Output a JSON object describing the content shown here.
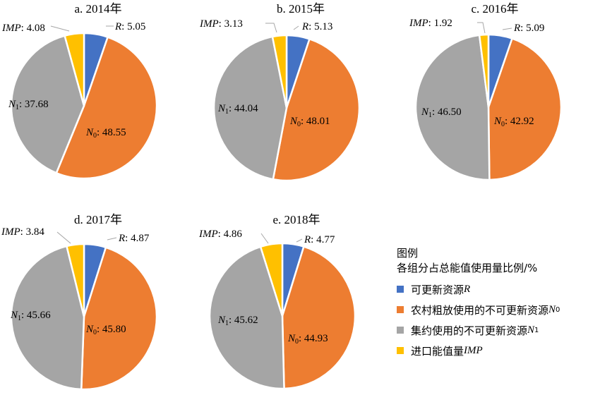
{
  "colors": {
    "R": "#4472c4",
    "N0": "#ed7d31",
    "N1": "#a5a5a5",
    "IMP": "#ffc000"
  },
  "legend": {
    "title": "图例",
    "subtitle": "各组分占总能值使用量比例/%",
    "items": [
      {
        "key": "R",
        "text": "可更新资源",
        "symbol": "R",
        "sub": ""
      },
      {
        "key": "N0",
        "text": "农村粗放使用的不可更新资源",
        "symbol": "N",
        "sub": "0"
      },
      {
        "key": "N1",
        "text": "集约使用的不可更新资源",
        "symbol": "N",
        "sub": "1"
      },
      {
        "key": "IMP",
        "text": "进口能值量",
        "symbol": "IMP",
        "sub": ""
      }
    ]
  },
  "chart_data": [
    {
      "type": "pie",
      "title": "a. 2014年",
      "slices": [
        {
          "key": "R",
          "label": "R",
          "value": 5.05
        },
        {
          "key": "N0",
          "label": "N0",
          "value": 48.55
        },
        {
          "key": "N1",
          "label": "N1",
          "value": 37.68
        },
        {
          "key": "IMP",
          "label": "IMP",
          "value": 4.08
        }
      ]
    },
    {
      "type": "pie",
      "title": "b. 2015年",
      "slices": [
        {
          "key": "R",
          "label": "R",
          "value": 5.13
        },
        {
          "key": "N0",
          "label": "N0",
          "value": 48.01
        },
        {
          "key": "N1",
          "label": "N1",
          "value": 44.04
        },
        {
          "key": "IMP",
          "label": "IMP",
          "value": 3.13
        }
      ]
    },
    {
      "type": "pie",
      "title": "c. 2016年",
      "slices": [
        {
          "key": "R",
          "label": "R",
          "value": 5.09
        },
        {
          "key": "N0",
          "label": "N0",
          "value": 42.92
        },
        {
          "key": "N1",
          "label": "N1",
          "value": 46.5
        },
        {
          "key": "IMP",
          "label": "IMP",
          "value": 1.92
        }
      ]
    },
    {
      "type": "pie",
      "title": "d. 2017年",
      "slices": [
        {
          "key": "R",
          "label": "R",
          "value": 4.87
        },
        {
          "key": "N0",
          "label": "N0",
          "value": 45.8
        },
        {
          "key": "N1",
          "label": "N1",
          "value": 45.66
        },
        {
          "key": "IMP",
          "label": "IMP",
          "value": 3.84
        }
      ]
    },
    {
      "type": "pie",
      "title": "e. 2018年",
      "slices": [
        {
          "key": "R",
          "label": "R",
          "value": 4.77
        },
        {
          "key": "N0",
          "label": "N0",
          "value": 44.93
        },
        {
          "key": "N1",
          "label": "N1",
          "value": 45.62
        },
        {
          "key": "IMP",
          "label": "IMP",
          "value": 4.86
        }
      ]
    }
  ]
}
